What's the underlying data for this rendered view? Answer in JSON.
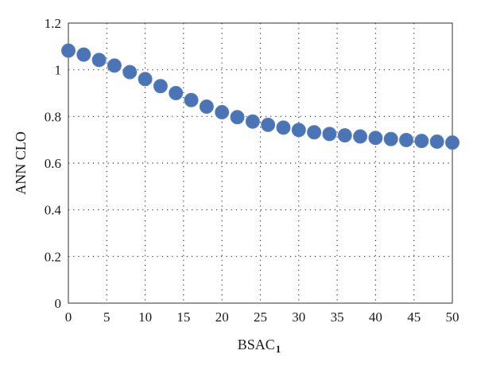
{
  "chart_data": {
    "type": "scatter",
    "xlabel": "BSAC",
    "xlabel_subscript": "1",
    "ylabel": "ANN CLO",
    "xlim": [
      0,
      50
    ],
    "ylim": [
      0,
      1.2
    ],
    "x_ticks": [
      "0",
      "5",
      "10",
      "15",
      "20",
      "25",
      "30",
      "35",
      "40",
      "45",
      "50"
    ],
    "y_ticks": [
      "0",
      "0.2",
      "0.4",
      "0.6",
      "0.8",
      "1",
      "1.2"
    ],
    "grid": true,
    "marker_color": "#4a74b5",
    "series": [
      {
        "x": [
          0,
          2,
          4,
          6,
          8,
          10,
          12,
          14,
          16,
          18,
          20,
          22,
          24,
          26,
          28,
          30,
          32,
          34,
          36,
          38,
          40,
          42,
          44,
          46,
          48,
          50
        ],
        "y": [
          1.082,
          1.065,
          1.042,
          1.018,
          0.99,
          0.96,
          0.93,
          0.9,
          0.87,
          0.842,
          0.818,
          0.797,
          0.778,
          0.764,
          0.752,
          0.742,
          0.732,
          0.725,
          0.719,
          0.714,
          0.708,
          0.703,
          0.699,
          0.695,
          0.692,
          0.688
        ]
      }
    ]
  }
}
